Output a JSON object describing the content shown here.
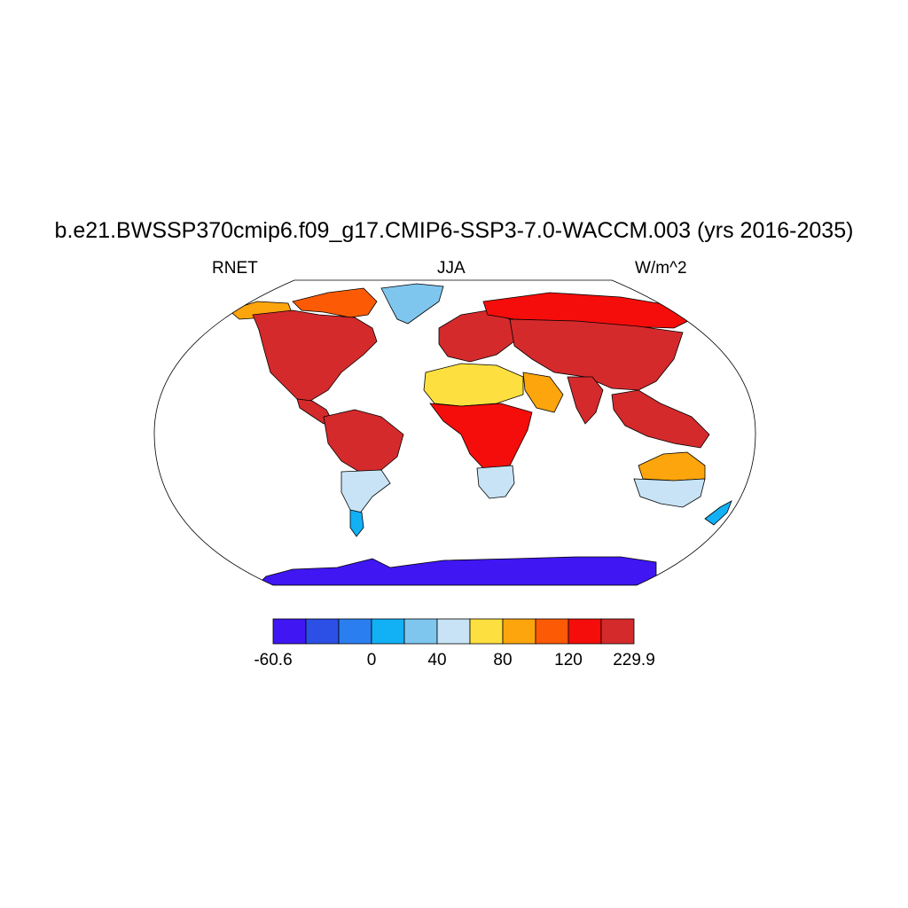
{
  "title": "b.e21.BWSSP370cmip6.f09_g17.CMIP6-SSP3-7.0-WACCM.003 (yrs 2016-2035)",
  "left_string": "RNET",
  "center_string": "JJA",
  "right_string": "W/m^2",
  "map": {
    "projection": "Robinson",
    "field": "RNET",
    "season": "JJA",
    "units": "W/m^2",
    "ocean_fill": "#ffffff",
    "coastline_color": "#000000"
  },
  "colorbar": {
    "colors": [
      "#4016f2",
      "#2c4fe6",
      "#2b7eef",
      "#12b0f5",
      "#7ec6ee",
      "#c7e3f5",
      "#fde03f",
      "#fca50d",
      "#fc5a04",
      "#f40d0a",
      "#d42a2c"
    ],
    "tick_labels": [
      {
        "text": "-60.6",
        "boundary": 0
      },
      {
        "text": "0",
        "boundary": 3
      },
      {
        "text": "40",
        "boundary": 5
      },
      {
        "text": "80",
        "boundary": 7
      },
      {
        "text": "120",
        "boundary": 9
      },
      {
        "text": "229.9",
        "boundary": 11
      }
    ]
  },
  "regions": [
    {
      "name": "north-america",
      "level": 10
    },
    {
      "name": "canada-north",
      "level": 8
    },
    {
      "name": "alaska",
      "level": 7
    },
    {
      "name": "greenland",
      "level": 4
    },
    {
      "name": "central-america",
      "level": 10
    },
    {
      "name": "south-america-north",
      "level": 10
    },
    {
      "name": "south-america-south",
      "level": 5
    },
    {
      "name": "patagonia",
      "level": 3
    },
    {
      "name": "europe",
      "level": 10
    },
    {
      "name": "siberia",
      "level": 9
    },
    {
      "name": "asia",
      "level": 10
    },
    {
      "name": "sahara",
      "level": 6
    },
    {
      "name": "africa-central",
      "level": 9
    },
    {
      "name": "southern-africa",
      "level": 5
    },
    {
      "name": "arabia",
      "level": 7
    },
    {
      "name": "india",
      "level": 10
    },
    {
      "name": "southeast-asia",
      "level": 10
    },
    {
      "name": "australia-north",
      "level": 7
    },
    {
      "name": "australia-south",
      "level": 5
    },
    {
      "name": "new-zealand",
      "level": 3
    },
    {
      "name": "antarctica",
      "level": 0
    }
  ]
}
